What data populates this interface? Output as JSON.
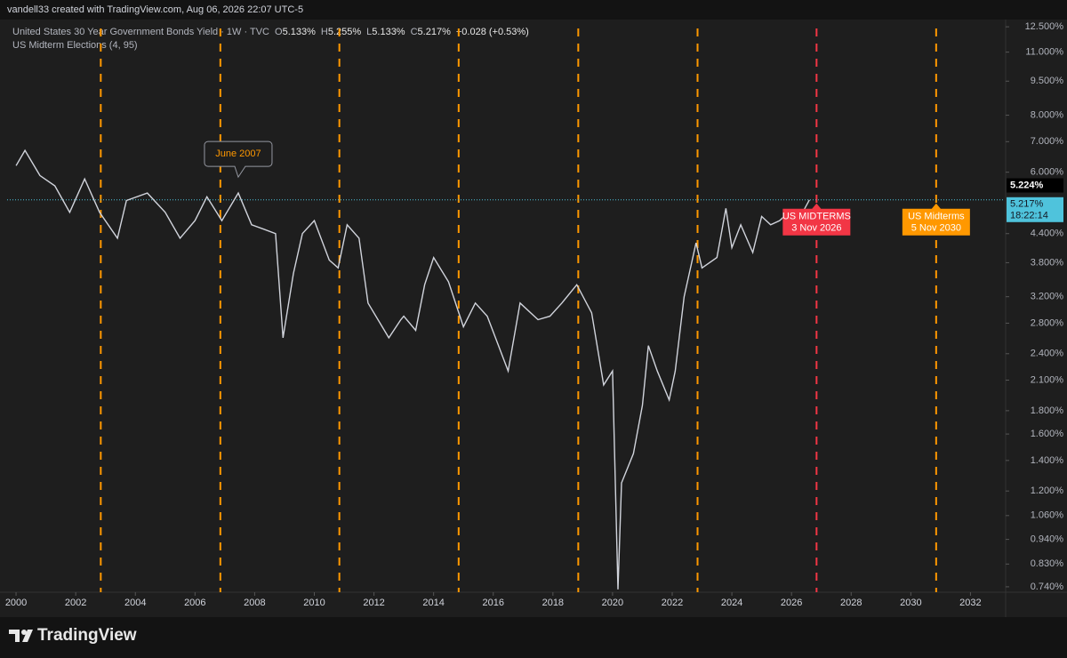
{
  "chart_data": {
    "type": "line",
    "author_line": "vandell33 created with TradingView.com, Aug 06, 2026 22:07 UTC-5",
    "title": "United States 30 Year Government Bonds Yield · 1W · TVC",
    "ohlc": [
      {
        "key": "O",
        "label": "5.133%"
      },
      {
        "key": "H",
        "label": "5.255%"
      },
      {
        "key": "L",
        "label": "5.133%"
      },
      {
        "key": "C",
        "label": "5.217%"
      }
    ],
    "change": "+0.028 (+0.53%)",
    "indicator": "US Midterm Elections (4, 95)",
    "brand": "TradingView",
    "log_scale": true,
    "xlim": [
      1999.7,
      2033.15
    ],
    "ylim": [
      0.72,
      13.2
    ],
    "xticks": [
      2000,
      2002,
      2004,
      2006,
      2008,
      2010,
      2012,
      2014,
      2016,
      2018,
      2020,
      2022,
      2024,
      2026,
      2028,
      2030,
      2032
    ],
    "yticks": [
      {
        "value": 12.5,
        "label": "12.500%"
      },
      {
        "value": 11,
        "label": "11.000%"
      },
      {
        "value": 9.5,
        "label": "9.500%"
      },
      {
        "value": 8,
        "label": "8.000%"
      },
      {
        "value": 7,
        "label": "7.000%"
      },
      {
        "value": 6,
        "label": "6.000%"
      },
      {
        "value": 4.4,
        "label": "4.400%"
      },
      {
        "value": 3.8,
        "label": "3.800%"
      },
      {
        "value": 3.2,
        "label": "3.200%"
      },
      {
        "value": 2.8,
        "label": "2.800%"
      },
      {
        "value": 2.4,
        "label": "2.400%"
      },
      {
        "value": 2.1,
        "label": "2.100%"
      },
      {
        "value": 1.8,
        "label": "1.800%"
      },
      {
        "value": 1.6,
        "label": "1.600%"
      },
      {
        "value": 1.4,
        "label": "1.400%"
      },
      {
        "value": 1.2,
        "label": "1.200%"
      },
      {
        "value": 1.06,
        "label": "1.060%"
      },
      {
        "value": 0.94,
        "label": "0.940%"
      },
      {
        "value": 0.83,
        "label": "0.830%"
      },
      {
        "value": 0.74,
        "label": "0.740%"
      }
    ],
    "x": [
      2000.0,
      2000.3,
      2000.8,
      2001.3,
      2001.8,
      2002.3,
      2002.8,
      2003.4,
      2003.7,
      2004.4,
      2005.0,
      2005.5,
      2006.0,
      2006.4,
      2006.9,
      2007.45,
      2007.9,
      2008.3,
      2008.7,
      2008.95,
      2009.3,
      2009.6,
      2010.0,
      2010.5,
      2010.8,
      2011.1,
      2011.5,
      2011.8,
      2012.5,
      2012.9,
      2013.0,
      2013.4,
      2013.7,
      2014.0,
      2014.5,
      2015.0,
      2015.4,
      2015.8,
      2016.5,
      2016.9,
      2017.5,
      2017.9,
      2018.3,
      2018.8,
      2019.3,
      2019.7,
      2020.0,
      2020.18,
      2020.3,
      2020.7,
      2021.0,
      2021.2,
      2021.5,
      2021.9,
      2022.1,
      2022.4,
      2022.8,
      2023.0,
      2023.5,
      2023.8,
      2024.0,
      2024.3,
      2024.7,
      2025.0,
      2025.3,
      2025.6,
      2025.9,
      2026.3,
      2026.6
    ],
    "series": [
      {
        "name": "US30Y",
        "color": "#d1d4dc",
        "values": [
          6.2,
          6.7,
          5.9,
          5.6,
          4.9,
          5.8,
          4.9,
          4.3,
          5.2,
          5.4,
          4.9,
          4.3,
          4.7,
          5.3,
          4.7,
          5.4,
          4.6,
          4.5,
          4.4,
          2.6,
          3.6,
          4.4,
          4.7,
          3.85,
          3.7,
          4.6,
          4.3,
          3.1,
          2.6,
          2.85,
          2.9,
          2.7,
          3.4,
          3.9,
          3.45,
          2.75,
          3.1,
          2.9,
          2.2,
          3.1,
          2.85,
          2.9,
          3.1,
          3.4,
          2.95,
          2.05,
          2.2,
          0.73,
          1.25,
          1.45,
          1.85,
          2.5,
          2.2,
          1.9,
          2.2,
          3.2,
          4.2,
          3.7,
          3.9,
          5.0,
          4.1,
          4.6,
          4.0,
          4.8,
          4.6,
          4.7,
          4.9,
          4.8,
          5.217
        ]
      }
    ],
    "price_line": {
      "value": 5.217,
      "color": "#4fc3dc"
    },
    "price_labels": [
      {
        "value": 5.224,
        "label": "5.224%",
        "color": "#000000"
      },
      {
        "value": 5.217,
        "label": "5.217%",
        "color": "#4fc3dc"
      }
    ],
    "countdown": "18:22:14",
    "events": [
      {
        "x": 2002.84,
        "color": "#ff9800"
      },
      {
        "x": 2006.85,
        "color": "#ff9800"
      },
      {
        "x": 2010.84,
        "color": "#ff9800"
      },
      {
        "x": 2014.84,
        "color": "#ff9800"
      },
      {
        "x": 2018.85,
        "color": "#ff9800"
      },
      {
        "x": 2022.85,
        "color": "#ff9800"
      },
      {
        "x": 2026.84,
        "color": "#f23645"
      },
      {
        "x": 2030.85,
        "color": "#ff9800"
      }
    ],
    "annotations": [
      {
        "lines": [
          "June 2007"
        ],
        "x": 2007.45,
        "value": 5.4,
        "color": "#ff9800"
      },
      {
        "lines": [
          "US MIDTERMS",
          "3 Nov 2026"
        ],
        "x": 2026.84,
        "value": 5.217,
        "color": "#f23645"
      },
      {
        "lines": [
          "US Midterms",
          "5 Nov 2030"
        ],
        "x": 2030.85,
        "value": 5.217,
        "color": "#ff9800"
      }
    ]
  }
}
